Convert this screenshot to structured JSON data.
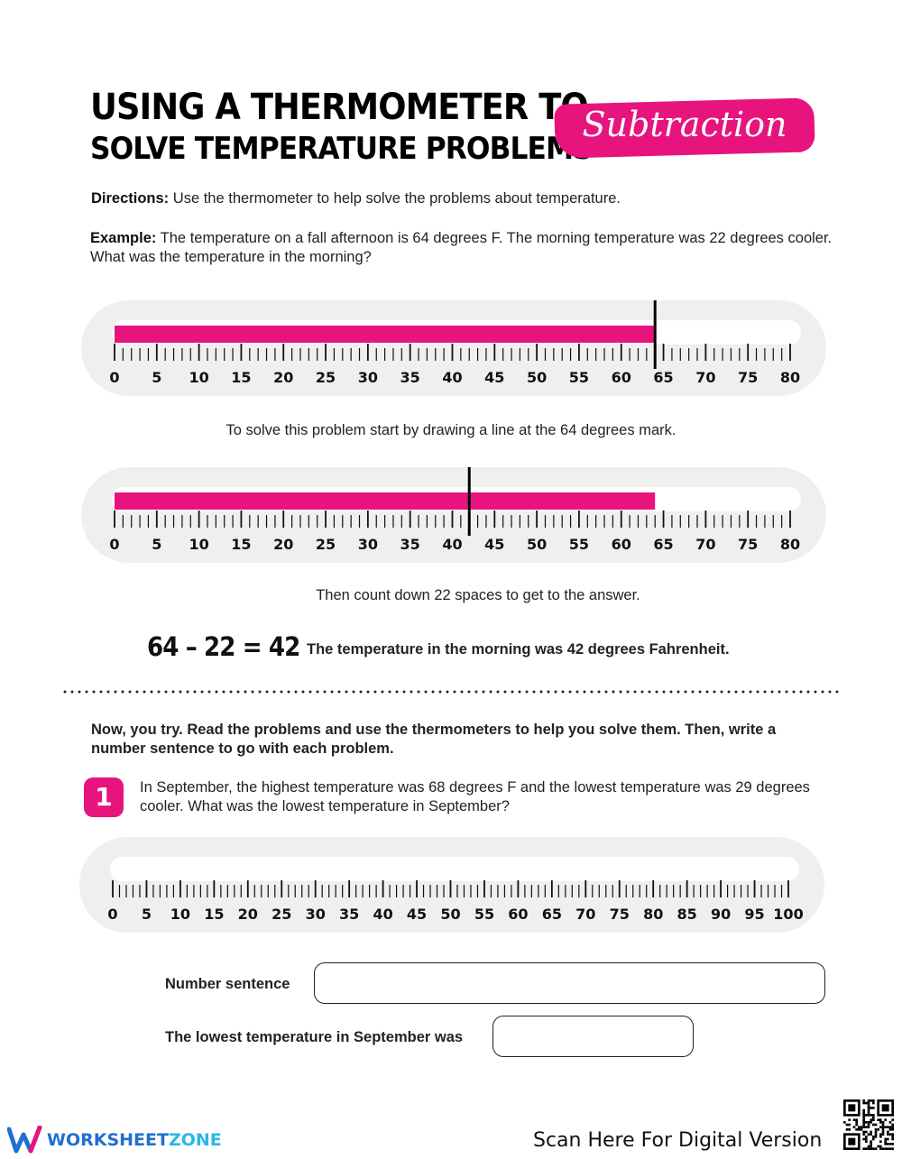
{
  "header": {
    "title_line1": "USING A THERMOMETER TO",
    "title_line2": "SOLVE TEMPERATURE PROBLEMS",
    "badge": "Subtraction",
    "accent_color": "#e8147e"
  },
  "directions": {
    "label": "Directions:",
    "text": "Use the thermometer to help solve the problems about temperature."
  },
  "example": {
    "label": "Example:",
    "text": "The temperature on a fall afternoon is 64 degrees F. The morning temperature was 22 degrees cooler. What was the temperature in the morning?"
  },
  "thermometers": [
    {
      "max": 80,
      "fill_to": 64,
      "marker_at": 64,
      "labels": [
        "0",
        "5",
        "10",
        "15",
        "20",
        "25",
        "30",
        "35",
        "40",
        "45",
        "50",
        "55",
        "60",
        "65",
        "70",
        "75",
        "80"
      ]
    },
    {
      "max": 80,
      "fill_to": 64,
      "marker_at": 42,
      "labels": [
        "0",
        "5",
        "10",
        "15",
        "20",
        "25",
        "30",
        "35",
        "40",
        "45",
        "50",
        "55",
        "60",
        "65",
        "70",
        "75",
        "80"
      ]
    },
    {
      "max": 100,
      "fill_to": 0,
      "marker_at": null,
      "labels": [
        "0",
        "5",
        "10",
        "15",
        "20",
        "25",
        "30",
        "35",
        "40",
        "45",
        "50",
        "55",
        "60",
        "65",
        "70",
        "75",
        "80",
        "85",
        "90",
        "95",
        "100"
      ]
    }
  ],
  "step1": "To solve this problem start by drawing a line at the 64 degrees mark.",
  "step2": "Then count down 22 spaces to get to the answer.",
  "equation": "64 – 22 = 42",
  "answer": "The temperature in the morning was 42 degrees Fahrenheit.",
  "instructions": "Now, you try. Read the problems and use the thermometers to help you solve them. Then, write a number sentence to go with each problem.",
  "problem1": {
    "number": "1",
    "text": "In September, the highest temperature was 68 degrees F and the lowest temperature was 29 degrees cooler. What was the lowest temperature in September?",
    "number_sentence_label": "Number sentence",
    "answer_label": "The lowest temperature in September was"
  },
  "footer": {
    "logo_part1": "WORKSHEET",
    "logo_part2": "ZONE",
    "scan_text": "Scan Here For Digital Version"
  }
}
